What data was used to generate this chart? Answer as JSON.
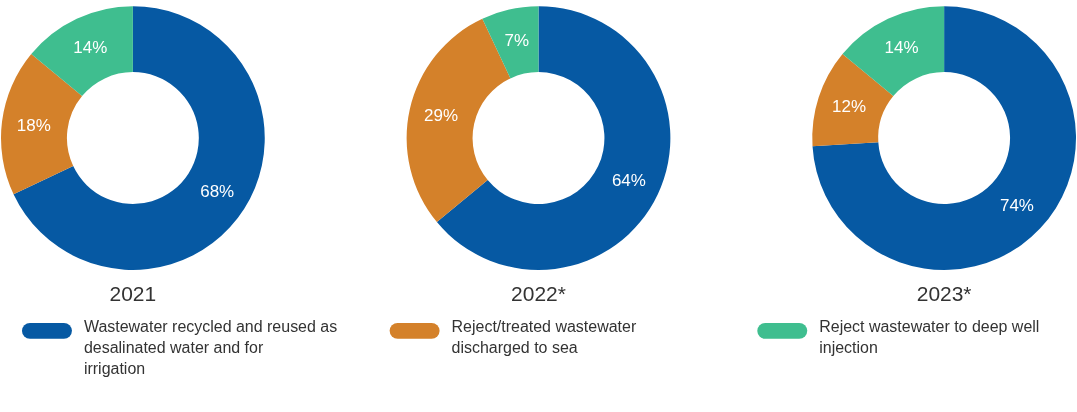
{
  "chart_data": [
    {
      "type": "donut",
      "title": "2021",
      "categories": [
        "Wastewater recycled and reused as desalinated water and for irrigation",
        "Reject/treated wastewater discharged to sea",
        "Reject wastewater to deep well injection"
      ],
      "values": [
        68,
        18,
        14
      ],
      "value_labels": [
        "68%",
        "18%",
        "14%"
      ],
      "colors": [
        "#0659a3",
        "#d4812a",
        "#3fbe8f"
      ],
      "legend": "bottom"
    },
    {
      "type": "donut",
      "title": "2022*",
      "categories": [
        null,
        null,
        null
      ],
      "values": [
        64,
        29,
        7
      ],
      "value_labels": [
        "64%",
        "29%",
        "7%"
      ],
      "colors": [
        "#0659a3",
        "#d4812a",
        "#3fbe8f"
      ]
    },
    {
      "type": "donut",
      "title": "2023*",
      "categories": [
        null,
        null,
        null
      ],
      "values": [
        74,
        12,
        14
      ],
      "value_labels": [
        "74%",
        "12%",
        "14%"
      ],
      "colors": [
        "#0659a3",
        "#d4812a",
        "#3fbe8f"
      ]
    }
  ]
}
